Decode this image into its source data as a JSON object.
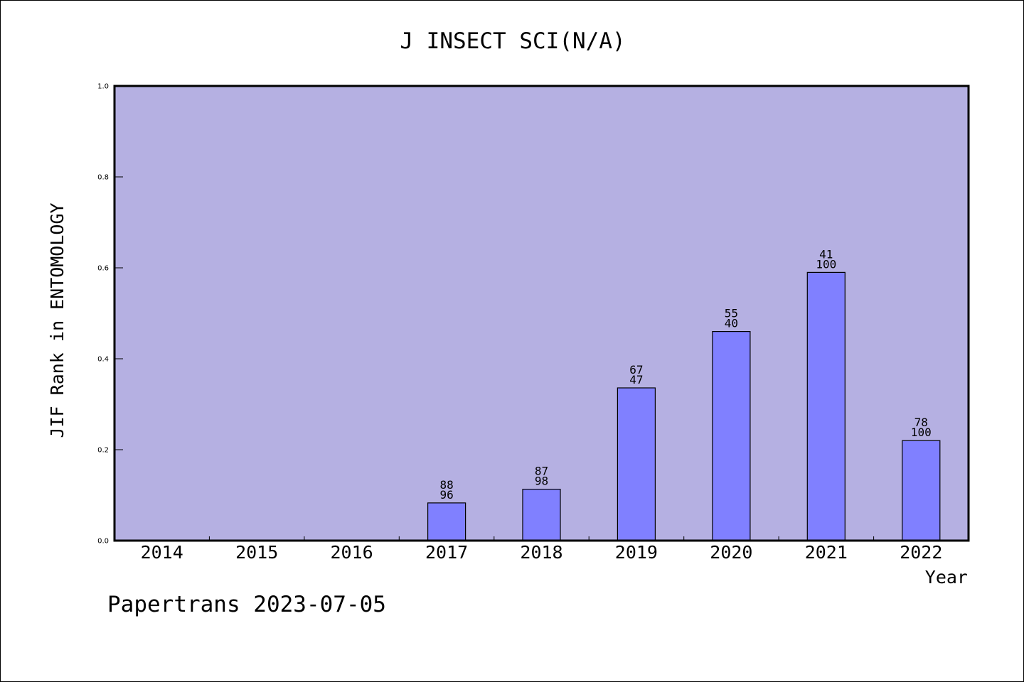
{
  "footer": {
    "watermark": "Papertrans 2023-07-05"
  },
  "colors": {
    "plot_background": "#b5b0e2",
    "bar_fill": "#8080ff",
    "axis": "#000000",
    "text": "#000000"
  },
  "chart_data": {
    "type": "bar",
    "title": "J INSECT SCI(N/A)",
    "xlabel": "Year",
    "ylabel": "JIF Rank in ENTOMOLOGY",
    "ylim": [
      0,
      1.0
    ],
    "yticks": [
      0.0,
      0.2,
      0.4,
      0.6,
      0.8,
      1.0
    ],
    "ytick_labels": [
      "0.0",
      "0.2",
      "0.4",
      "0.6",
      "0.8",
      "1.0"
    ],
    "grid": false,
    "categories": [
      "2014",
      "2015",
      "2016",
      "2017",
      "2018",
      "2019",
      "2020",
      "2021",
      "2022"
    ],
    "values": [
      null,
      null,
      null,
      0.083,
      0.113,
      0.336,
      0.46,
      0.59,
      0.22
    ],
    "labels_top": [
      "",
      "",
      "",
      "88",
      "87",
      "67",
      "55",
      "41",
      "78"
    ],
    "labels_bottom": [
      "",
      "",
      "",
      "96",
      "98",
      "47",
      "40",
      "100",
      "100"
    ]
  }
}
